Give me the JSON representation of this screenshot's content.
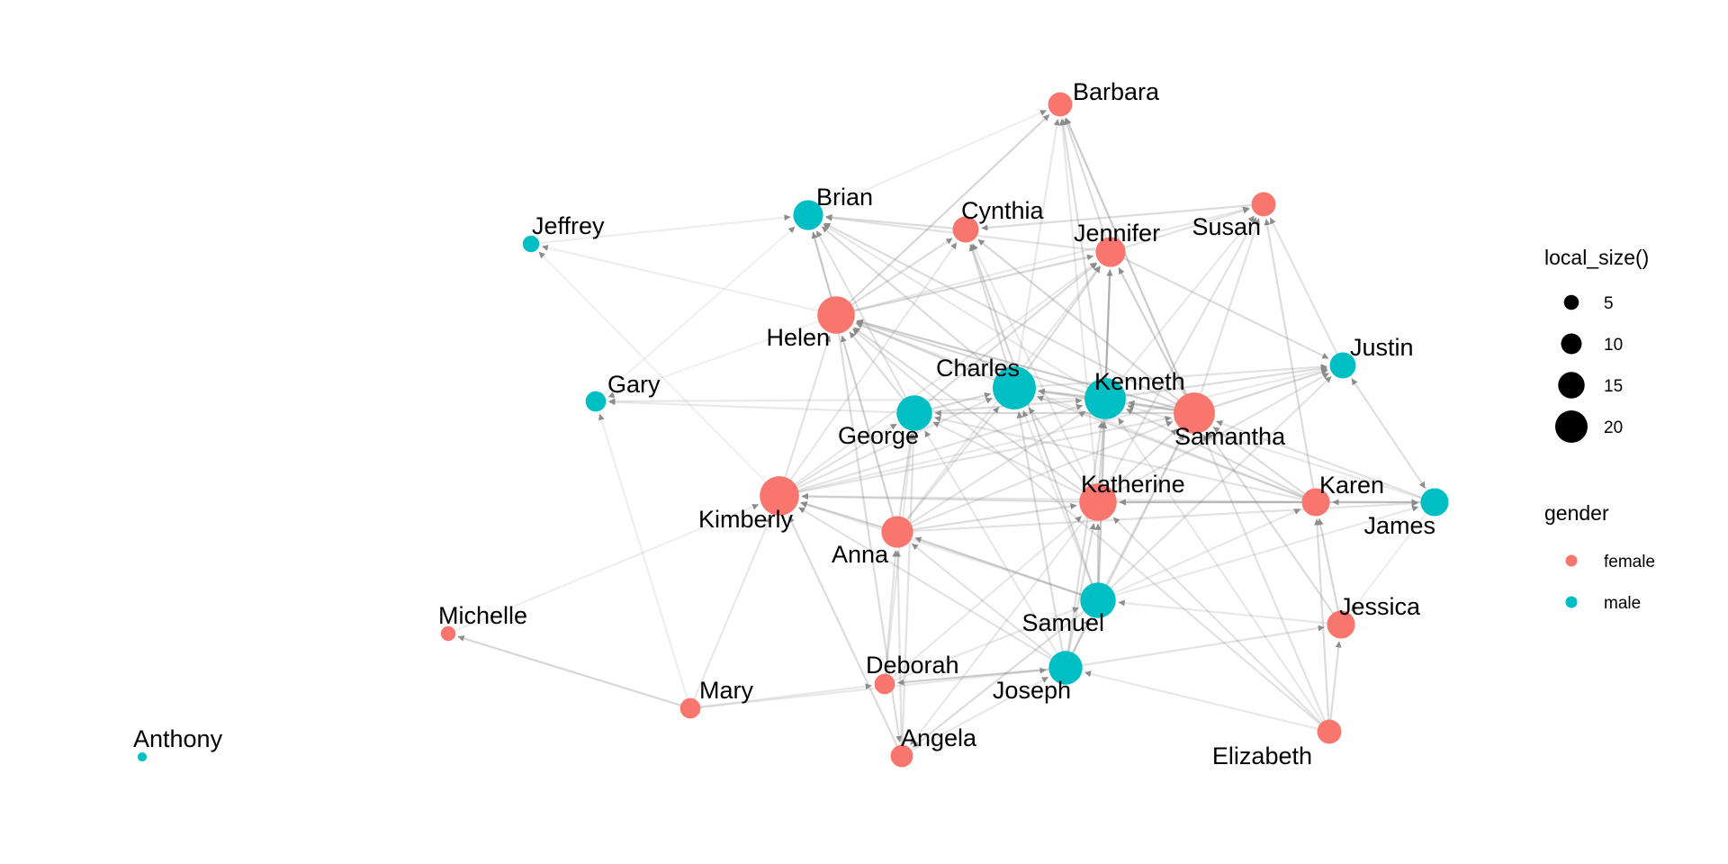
{
  "network": {
    "colors": {
      "female": "#F8766D",
      "male": "#00BFC4",
      "edge": "#8c8c8c",
      "background": "#ffffff"
    },
    "nodes": [
      {
        "name": "Barbara",
        "gender": "female",
        "size": 9
      },
      {
        "name": "Brian",
        "gender": "male",
        "size": 12
      },
      {
        "name": "Cynthia",
        "gender": "female",
        "size": 10
      },
      {
        "name": "Jeffrey",
        "gender": "male",
        "size": 5
      },
      {
        "name": "Susan",
        "gender": "female",
        "size": 9
      },
      {
        "name": "Jennifer",
        "gender": "female",
        "size": 12
      },
      {
        "name": "Helen",
        "gender": "female",
        "size": 16
      },
      {
        "name": "Justin",
        "gender": "male",
        "size": 10
      },
      {
        "name": "Gary",
        "gender": "male",
        "size": 7
      },
      {
        "name": "Charles",
        "gender": "male",
        "size": 19
      },
      {
        "name": "Kenneth",
        "gender": "male",
        "size": 18
      },
      {
        "name": "George",
        "gender": "male",
        "size": 15
      },
      {
        "name": "Samantha",
        "gender": "female",
        "size": 18
      },
      {
        "name": "Kimberly",
        "gender": "female",
        "size": 17
      },
      {
        "name": "Katherine",
        "gender": "female",
        "size": 16
      },
      {
        "name": "Karen",
        "gender": "female",
        "size": 11
      },
      {
        "name": "James",
        "gender": "male",
        "size": 11
      },
      {
        "name": "Anna",
        "gender": "female",
        "size": 13
      },
      {
        "name": "Samuel",
        "gender": "male",
        "size": 15
      },
      {
        "name": "Michelle",
        "gender": "female",
        "size": 4
      },
      {
        "name": "Jessica",
        "gender": "female",
        "size": 11
      },
      {
        "name": "Deborah",
        "gender": "female",
        "size": 7
      },
      {
        "name": "Joseph",
        "gender": "male",
        "size": 14
      },
      {
        "name": "Mary",
        "gender": "female",
        "size": 7
      },
      {
        "name": "Angela",
        "gender": "female",
        "size": 8
      },
      {
        "name": "Elizabeth",
        "gender": "female",
        "size": 9
      },
      {
        "name": "Anthony",
        "gender": "male",
        "size": 1
      }
    ],
    "edges": [
      [
        "Brian",
        "Barbara",
        0.14
      ],
      [
        "Helen",
        "Barbara",
        0.35
      ],
      [
        "Jennifer",
        "Barbara",
        0.3
      ],
      [
        "Kenneth",
        "Barbara",
        0.3
      ],
      [
        "Samantha",
        "Barbara",
        0.45
      ],
      [
        "Katherine",
        "Barbara",
        0.2
      ],
      [
        "Charles",
        "Barbara",
        0.2
      ],
      [
        "Helen",
        "Brian",
        0.5
      ],
      [
        "Cynthia",
        "Brian",
        0.3
      ],
      [
        "Jennifer",
        "Brian",
        0.25
      ],
      [
        "Jeffrey",
        "Brian",
        0.15
      ],
      [
        "Gary",
        "Brian",
        0.12
      ],
      [
        "Charles",
        "Brian",
        0.3
      ],
      [
        "George",
        "Brian",
        0.25
      ],
      [
        "Kenneth",
        "Brian",
        0.2
      ],
      [
        "Samantha",
        "Brian",
        0.3
      ],
      [
        "Susan",
        "Cynthia",
        0.3
      ],
      [
        "Charles",
        "Cynthia",
        0.3
      ],
      [
        "Helen",
        "Cynthia",
        0.3
      ],
      [
        "Kimberly",
        "Cynthia",
        0.2
      ],
      [
        "Katherine",
        "Cynthia",
        0.2
      ],
      [
        "Samuel",
        "Cynthia",
        0.35
      ],
      [
        "Samantha",
        "Cynthia",
        0.35
      ],
      [
        "Helen",
        "Jeffrey",
        0.15
      ],
      [
        "Kimberly",
        "Jeffrey",
        0.12
      ],
      [
        "Kenneth",
        "Jennifer",
        0.6
      ],
      [
        "Samantha",
        "Jennifer",
        0.4
      ],
      [
        "Charles",
        "Jennifer",
        0.3
      ],
      [
        "Helen",
        "Jennifer",
        0.35
      ],
      [
        "George",
        "Jennifer",
        0.3
      ],
      [
        "Anna",
        "Jennifer",
        0.2
      ],
      [
        "Samuel",
        "Jennifer",
        0.25
      ],
      [
        "Kimberly",
        "Jennifer",
        0.2
      ],
      [
        "Jennifer",
        "Susan",
        0.25
      ],
      [
        "Helen",
        "Susan",
        0.2
      ],
      [
        "Justin",
        "Susan",
        0.25
      ],
      [
        "Karen",
        "Susan",
        0.3
      ],
      [
        "Samantha",
        "Susan",
        0.25
      ],
      [
        "Katherine",
        "Susan",
        0.25
      ],
      [
        "Kenneth",
        "Susan",
        0.2
      ],
      [
        "Charles",
        "Helen",
        0.35
      ],
      [
        "Kenneth",
        "Helen",
        0.35
      ],
      [
        "Samantha",
        "Helen",
        0.45
      ],
      [
        "George",
        "Helen",
        0.3
      ],
      [
        "Anna",
        "Helen",
        0.4
      ],
      [
        "Kimberly",
        "Helen",
        0.25
      ],
      [
        "Katherine",
        "Helen",
        0.3
      ],
      [
        "Karen",
        "Helen",
        0.2
      ],
      [
        "Kenneth",
        "Justin",
        0.3
      ],
      [
        "Samantha",
        "Justin",
        0.35
      ],
      [
        "Charles",
        "Justin",
        0.25
      ],
      [
        "Katherine",
        "Justin",
        0.25
      ],
      [
        "Jennifer",
        "Justin",
        0.3
      ],
      [
        "James",
        "Justin",
        0.15
      ],
      [
        "Samuel",
        "Justin",
        0.25
      ],
      [
        "Kimberly",
        "Justin",
        0.2
      ],
      [
        "George",
        "Gary",
        0.2
      ],
      [
        "Kenneth",
        "Gary",
        0.2
      ],
      [
        "Mary",
        "Gary",
        0.15
      ],
      [
        "Helen",
        "Gary",
        0.12
      ],
      [
        "Kenneth",
        "Charles",
        0.4
      ],
      [
        "Samantha",
        "Charles",
        0.35
      ],
      [
        "George",
        "Charles",
        0.35
      ],
      [
        "Katherine",
        "Charles",
        0.3
      ],
      [
        "Joseph",
        "Charles",
        0.3
      ],
      [
        "Kimberly",
        "Charles",
        0.25
      ],
      [
        "Anna",
        "Charles",
        0.25
      ],
      [
        "Karen",
        "Charles",
        0.3
      ],
      [
        "Samuel",
        "Charles",
        0.2
      ],
      [
        "Samantha",
        "Kenneth",
        0.4
      ],
      [
        "George",
        "Kenneth",
        0.3
      ],
      [
        "Katherine",
        "Kenneth",
        0.35
      ],
      [
        "Joseph",
        "Kenneth",
        0.3
      ],
      [
        "Karen",
        "Kenneth",
        0.3
      ],
      [
        "James",
        "Kenneth",
        0.2
      ],
      [
        "Samuel",
        "Kenneth",
        0.3
      ],
      [
        "Anna",
        "Kenneth",
        0.25
      ],
      [
        "Kimberly",
        "Kenneth",
        0.25
      ],
      [
        "Samantha",
        "George",
        0.35
      ],
      [
        "Kimberly",
        "George",
        0.25
      ],
      [
        "Anna",
        "George",
        0.3
      ],
      [
        "Katherine",
        "George",
        0.25
      ],
      [
        "Joseph",
        "George",
        0.2
      ],
      [
        "Karen",
        "George",
        0.25
      ],
      [
        "Angela",
        "George",
        0.25
      ],
      [
        "Deborah",
        "George",
        0.2
      ],
      [
        "Kimberly",
        "Samantha",
        0.25
      ],
      [
        "Katherine",
        "Samantha",
        0.3
      ],
      [
        "Karen",
        "Samantha",
        0.3
      ],
      [
        "James",
        "Samantha",
        0.25
      ],
      [
        "Jessica",
        "Samantha",
        0.3
      ],
      [
        "Elizabeth",
        "Samantha",
        0.25
      ],
      [
        "Joseph",
        "Samantha",
        0.3
      ],
      [
        "Anna",
        "Samantha",
        0.25
      ],
      [
        "Samuel",
        "Samantha",
        0.2
      ],
      [
        "Katherine",
        "Kimberly",
        0.3
      ],
      [
        "Anna",
        "Kimberly",
        0.4
      ],
      [
        "Mary",
        "Kimberly",
        0.2
      ],
      [
        "Michelle",
        "Kimberly",
        0.15
      ],
      [
        "Angela",
        "Kimberly",
        0.3
      ],
      [
        "Joseph",
        "Kimberly",
        0.25
      ],
      [
        "Samuel",
        "Kimberly",
        0.2
      ],
      [
        "Karen",
        "Kimberly",
        0.2
      ],
      [
        "Karen",
        "Katherine",
        0.3
      ],
      [
        "Anna",
        "Katherine",
        0.3
      ],
      [
        "Samuel",
        "Katherine",
        0.35
      ],
      [
        "Joseph",
        "Katherine",
        0.3
      ],
      [
        "Elizabeth",
        "Katherine",
        0.25
      ],
      [
        "Deborah",
        "Katherine",
        0.2
      ],
      [
        "James",
        "Katherine",
        0.2
      ],
      [
        "James",
        "Karen",
        0.3
      ],
      [
        "Jessica",
        "Karen",
        0.35
      ],
      [
        "Elizabeth",
        "Karen",
        0.3
      ],
      [
        "Samuel",
        "Karen",
        0.2
      ],
      [
        "Anna",
        "James",
        0.25
      ],
      [
        "Katherine",
        "James",
        0.25
      ],
      [
        "Samuel",
        "James",
        0.2
      ],
      [
        "Justin",
        "James",
        0.15
      ],
      [
        "Samuel",
        "Anna",
        0.45
      ],
      [
        "Joseph",
        "Anna",
        0.25
      ],
      [
        "Deborah",
        "Anna",
        0.25
      ],
      [
        "Angela",
        "Anna",
        0.25
      ],
      [
        "Joseph",
        "Samuel",
        0.3
      ],
      [
        "Jessica",
        "Samuel",
        0.2
      ],
      [
        "Deborah",
        "Samuel",
        0.2
      ],
      [
        "Mary",
        "Michelle",
        0.35
      ],
      [
        "Elizabeth",
        "Jessica",
        0.3
      ],
      [
        "Joseph",
        "Jessica",
        0.25
      ],
      [
        "James",
        "Jessica",
        0.15
      ],
      [
        "Joseph",
        "Deborah",
        0.45
      ],
      [
        "Mary",
        "Deborah",
        0.2
      ],
      [
        "Mary",
        "Joseph",
        0.2
      ],
      [
        "Angela",
        "Joseph",
        0.2
      ],
      [
        "Elizabeth",
        "Joseph",
        0.2
      ],
      [
        "Samuel",
        "Angela",
        0.3
      ],
      [
        "Katherine",
        "Angela",
        0.2
      ],
      [
        "Helen",
        "Angela",
        0.3
      ],
      [
        "Elizabeth",
        "Helen",
        0.25
      ],
      [
        "Elizabeth",
        "Kenneth",
        0.2
      ]
    ]
  },
  "legend": {
    "size_title": "local_size()",
    "size_entries": [
      {
        "label": "5",
        "size": 5
      },
      {
        "label": "10",
        "size": 10
      },
      {
        "label": "15",
        "size": 15
      },
      {
        "label": "20",
        "size": 20
      }
    ],
    "color_title": "gender",
    "color_entries": [
      {
        "label": "female",
        "key": "female"
      },
      {
        "label": "male",
        "key": "male"
      }
    ]
  }
}
